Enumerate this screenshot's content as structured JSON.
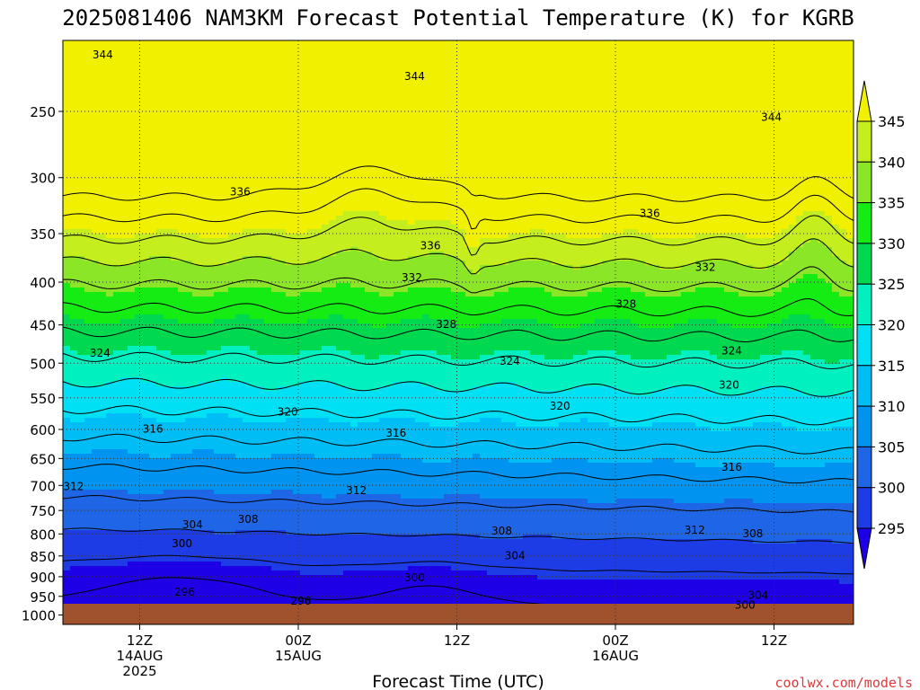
{
  "title": "2025081406 NAM3KM Forecast Potential Temperature (K) for KGRB",
  "credit": "coolwx.com/models",
  "chart_data": {
    "type": "contour-filled",
    "xlabel": "Forecast Time (UTC)",
    "ylabel": "",
    "x_ticks": [
      {
        "hour": 12,
        "lines": [
          "12Z",
          "14AUG",
          "2025"
        ]
      },
      {
        "hour": 24,
        "lines": [
          "00Z",
          "15AUG"
        ]
      },
      {
        "hour": 36,
        "lines": [
          "12Z"
        ]
      },
      {
        "hour": 48,
        "lines": [
          "00Z",
          "16AUG"
        ]
      },
      {
        "hour": 60,
        "lines": [
          "12Z"
        ]
      }
    ],
    "x_range_hours": [
      6,
      66
    ],
    "y_ticks": [
      250,
      300,
      350,
      400,
      450,
      500,
      550,
      600,
      650,
      700,
      750,
      800,
      850,
      900,
      950,
      1000
    ],
    "y_range_hPa": [
      200,
      1000
    ],
    "grid": true,
    "colorbar": {
      "levels": [
        295,
        300,
        305,
        310,
        315,
        320,
        325,
        330,
        335,
        340,
        345
      ],
      "colors": [
        "#1e00e6",
        "#1e3ce6",
        "#1f66e6",
        "#0094f0",
        "#00bdf5",
        "#00e0f5",
        "#00f0c0",
        "#00d850",
        "#14ec14",
        "#8ce628",
        "#c4ee1e",
        "#f0f000"
      ]
    },
    "ground_color": "#a0522d",
    "contour_interval_K": 4,
    "contour_labels": [
      {
        "value": 344,
        "hour": 9.2,
        "hPa": 214
      },
      {
        "value": 344,
        "hour": 32.8,
        "hPa": 227
      },
      {
        "value": 344,
        "hour": 59.8,
        "hPa": 254
      },
      {
        "value": 336,
        "hour": 19.6,
        "hPa": 312
      },
      {
        "value": 336,
        "hour": 34.0,
        "hPa": 362
      },
      {
        "value": 336,
        "hour": 50.6,
        "hPa": 331
      },
      {
        "value": 332,
        "hour": 32.6,
        "hPa": 395
      },
      {
        "value": 332,
        "hour": 54.8,
        "hPa": 384
      },
      {
        "value": 328,
        "hour": 35.2,
        "hPa": 449
      },
      {
        "value": 328,
        "hour": 48.8,
        "hPa": 425
      },
      {
        "value": 324,
        "hour": 9.0,
        "hPa": 486
      },
      {
        "value": 324,
        "hour": 40.0,
        "hPa": 497
      },
      {
        "value": 324,
        "hour": 56.8,
        "hPa": 483
      },
      {
        "value": 320,
        "hour": 23.2,
        "hPa": 572
      },
      {
        "value": 320,
        "hour": 43.8,
        "hPa": 563
      },
      {
        "value": 320,
        "hour": 56.6,
        "hPa": 531
      },
      {
        "value": 316,
        "hour": 13.0,
        "hPa": 599
      },
      {
        "value": 316,
        "hour": 31.4,
        "hPa": 606
      },
      {
        "value": 316,
        "hour": 56.8,
        "hPa": 666
      },
      {
        "value": 312,
        "hour": 7.0,
        "hPa": 702
      },
      {
        "value": 312,
        "hour": 28.4,
        "hPa": 710
      },
      {
        "value": 312,
        "hour": 54.0,
        "hPa": 792
      },
      {
        "value": 308,
        "hour": 20.2,
        "hPa": 768
      },
      {
        "value": 308,
        "hour": 39.4,
        "hPa": 794
      },
      {
        "value": 308,
        "hour": 58.4,
        "hPa": 799
      },
      {
        "value": 304,
        "hour": 16.0,
        "hPa": 780
      },
      {
        "value": 304,
        "hour": 40.4,
        "hPa": 849
      },
      {
        "value": 304,
        "hour": 58.8,
        "hPa": 947
      },
      {
        "value": 300,
        "hour": 15.2,
        "hPa": 822
      },
      {
        "value": 300,
        "hour": 32.8,
        "hPa": 902
      },
      {
        "value": 300,
        "hour": 57.8,
        "hPa": 973
      },
      {
        "value": 296,
        "hour": 15.4,
        "hPa": 939
      },
      {
        "value": 296,
        "hour": 24.2,
        "hPa": 962
      }
    ]
  }
}
